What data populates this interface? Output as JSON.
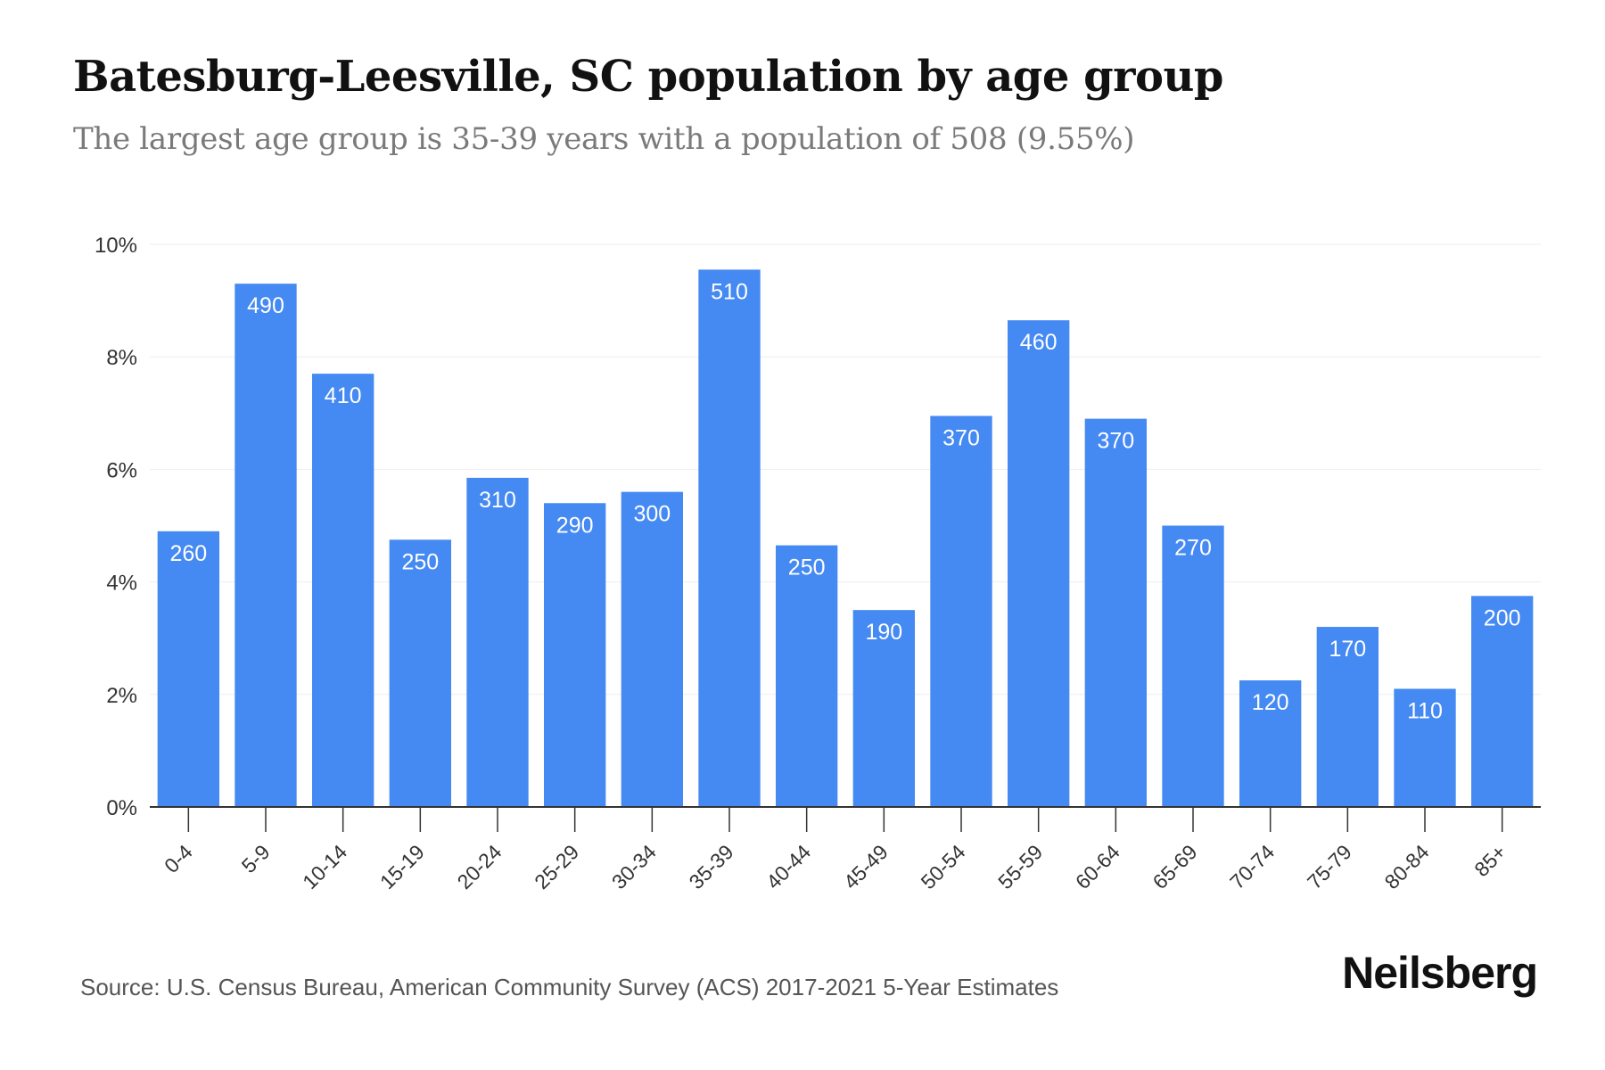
{
  "header": {
    "title": "Batesburg-Leesville, SC population by age group",
    "subtitle": "The largest age group is 35-39 years with a population of 508 (9.55%)"
  },
  "footer": {
    "source": "Source: U.S. Census Bureau, American Community Survey (ACS) 2017-2021 5-Year Estimates",
    "brand": "Neilsberg"
  },
  "colors": {
    "bar": "#4589f2",
    "grid": "#eeeeee",
    "axis": "#333333",
    "bar_label": "#ffffff",
    "tick_label": "#333333"
  },
  "chart_data": {
    "type": "bar",
    "categories": [
      "0-4",
      "5-9",
      "10-14",
      "15-19",
      "20-24",
      "25-29",
      "30-34",
      "35-39",
      "40-44",
      "45-49",
      "50-54",
      "55-59",
      "60-64",
      "65-69",
      "70-74",
      "75-79",
      "80-84",
      "85+"
    ],
    "values": [
      4.9,
      9.3,
      7.7,
      4.75,
      5.85,
      5.4,
      5.6,
      9.55,
      4.65,
      3.5,
      6.95,
      8.65,
      6.9,
      5.0,
      2.25,
      3.2,
      2.1,
      3.75
    ],
    "value_labels": [
      "260",
      "490",
      "410",
      "250",
      "310",
      "290",
      "300",
      "510",
      "250",
      "190",
      "370",
      "460",
      "370",
      "270",
      "120",
      "170",
      "110",
      "200"
    ],
    "ylim": [
      0,
      10
    ],
    "yticks": [
      0,
      2,
      4,
      6,
      8,
      10
    ],
    "ytick_labels": [
      "0%",
      "2%",
      "4%",
      "6%",
      "8%",
      "10%"
    ],
    "grid": true,
    "legend": "none"
  }
}
